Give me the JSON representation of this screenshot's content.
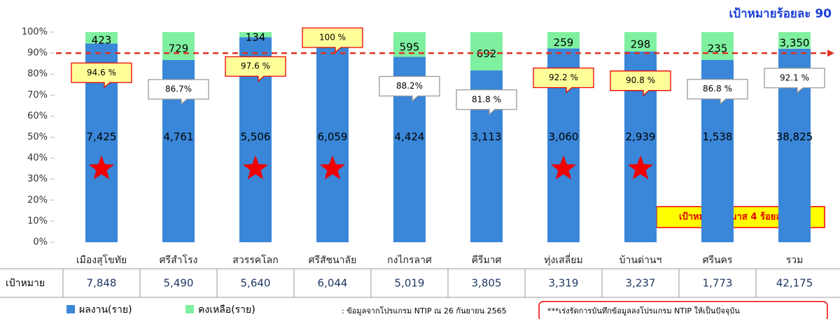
{
  "chart_data": {
    "type": "stacked_bar",
    "title": "เป้าหมายร้อยละ 90",
    "annotation": "เป้าหมายไตรมาส 4 ร้อยละ 90",
    "target_line": 90,
    "categories": [
      "เมืองสุโขทัย",
      "ศรีสำโรง",
      "สวรรคโลก",
      "ศรีสัชนาลัย",
      "กงไกรลาศ",
      "คีรีมาศ",
      "ทุ่งเสลี่ยม",
      "บ้านด่านฯ",
      "ศรีนคร",
      "รวม"
    ],
    "series": [
      {
        "name": "ผลงาน(ราย)",
        "color": "#3a86d8",
        "values": [
          94.6,
          86.7,
          97.6,
          100,
          88.2,
          81.8,
          92.2,
          90.8,
          86.8,
          92.1
        ],
        "value_labels": [
          "94.6 %",
          "86.7%",
          "97.6 %",
          "100 %",
          "88.2%",
          "81.8 %",
          "92.2 %",
          "90.8 %",
          "86.8 %",
          "92.1 %"
        ],
        "count_labels": [
          "7,425",
          "4,761",
          "5,506",
          "6,059",
          "4,424",
          "3,113",
          "3,060",
          "2,939",
          "1,538",
          "38,825"
        ]
      },
      {
        "name": "คงเหลือ(ราย)",
        "color": "#7ff0a0",
        "values": [
          5.4,
          13.3,
          2.4,
          0,
          11.8,
          18.2,
          7.8,
          9.2,
          13.2,
          7.9
        ],
        "count_labels": [
          "423",
          "729",
          "134",
          null,
          "595",
          "692",
          "259",
          "298",
          "235",
          "3,350"
        ]
      }
    ],
    "highlight": [
      true,
      false,
      true,
      true,
      false,
      false,
      true,
      true,
      false,
      false
    ],
    "ylim": [
      0,
      100
    ],
    "yticks": [
      {
        "value": 0,
        "label": "0%"
      },
      {
        "value": 10,
        "label": "10%"
      },
      {
        "value": 20,
        "label": "20%"
      },
      {
        "value": 30,
        "label": "30%"
      },
      {
        "value": 40,
        "label": "40%"
      },
      {
        "value": 50,
        "label": "50%"
      },
      {
        "value": 60,
        "label": "60%"
      },
      {
        "value": 70,
        "label": "70%"
      },
      {
        "value": 80,
        "label": "80%"
      },
      {
        "value": 90,
        "label": "90%"
      },
      {
        "value": 100,
        "label": "100%"
      }
    ],
    "table": {
      "header": "เป้าหมาย",
      "values": [
        "7,848",
        "5,490",
        "5,640",
        "6,044",
        "5,019",
        "3,805",
        "3,319",
        "3,237",
        "1,773",
        "42,175"
      ]
    },
    "source_note": ": ข้อมูลจากโปรแกรม NTIP ณ 26 กันยายน 2565",
    "urgent_note": "***เร่งรัดการบันทึกข้อมูลลงโปรแกรม NTIP ให้เป็นปัจจุบัน"
  }
}
